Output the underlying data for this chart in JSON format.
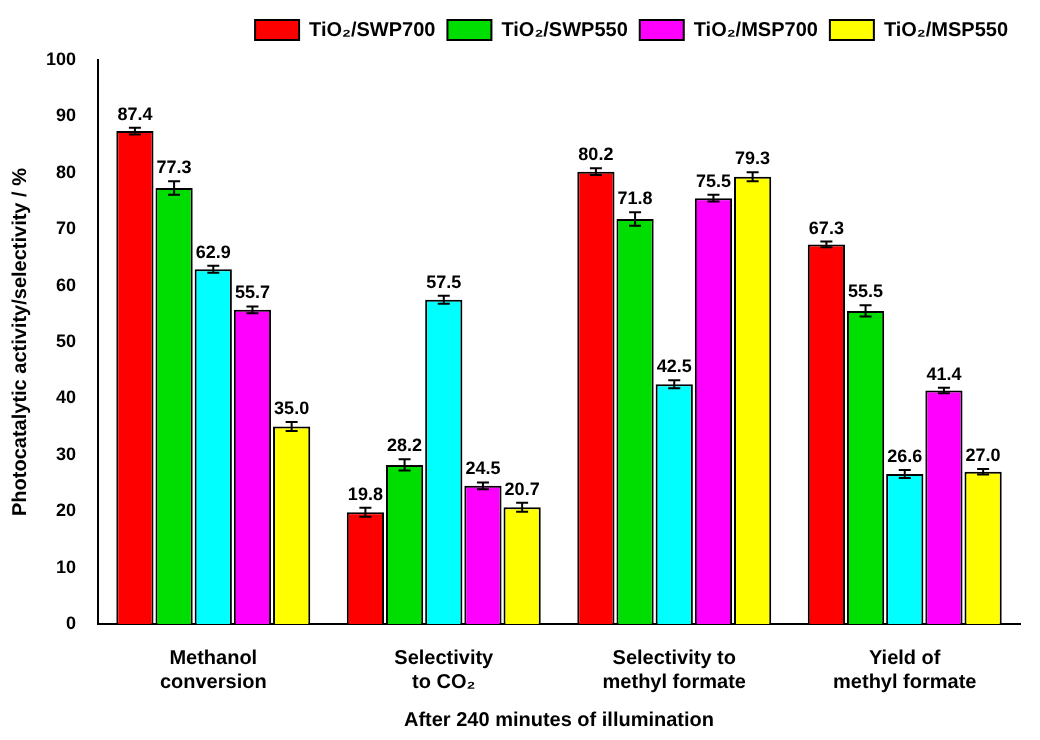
{
  "chart_data": {
    "type": "bar",
    "ylabel": "Photocatalytic activity/selectivity / %",
    "xlabel": "After 240 minutes of illumination",
    "categories": [
      "Methanol\nconversion",
      "Selectivity\nto CO₂",
      "Selectivity to\nmethyl formate",
      "Yield of\nmethyl formate"
    ],
    "series": [
      {
        "name": "TiO₂/SWP700",
        "color": "#ff0000",
        "values": [
          87.4,
          19.8,
          80.2,
          67.3
        ],
        "value_labels": [
          "87.4",
          "19.8",
          "80.2",
          "67.3"
        ],
        "errors": [
          0.6,
          0.8,
          0.6,
          0.5
        ]
      },
      {
        "name": "TiO₂/SWP550",
        "color": "#00dd00",
        "values": [
          77.3,
          28.2,
          71.8,
          55.5
        ],
        "value_labels": [
          "77.3",
          "28.2",
          "71.8",
          "55.5"
        ],
        "errors": [
          1.2,
          1.0,
          1.2,
          1.0
        ]
      },
      {
        "color": "#00ffff",
        "values": [
          62.9,
          57.5,
          42.5,
          26.6
        ],
        "value_labels": [
          "62.9",
          "57.5",
          "42.5",
          "26.6"
        ],
        "errors": [
          0.6,
          0.7,
          0.7,
          0.7
        ]
      },
      {
        "name": "TiO₂/MSP700",
        "color": "#ff00ff",
        "values": [
          55.7,
          24.5,
          75.5,
          41.4
        ],
        "value_labels": [
          "55.7",
          "24.5",
          "75.5",
          "41.4"
        ],
        "errors": [
          0.6,
          0.6,
          0.6,
          0.5
        ]
      },
      {
        "name": "TiO₂/MSP550",
        "color": "#ffff00",
        "values": [
          35.0,
          20.7,
          79.3,
          27.0
        ],
        "value_labels": [
          "35.0",
          "20.7",
          "79.3",
          "27.0"
        ],
        "errors": [
          0.8,
          0.8,
          0.8,
          0.5
        ]
      }
    ],
    "ylim": [
      0,
      100
    ],
    "yticks": [
      0,
      10,
      20,
      30,
      40,
      50,
      60,
      70,
      80,
      90,
      100
    ],
    "legend": "top right"
  }
}
